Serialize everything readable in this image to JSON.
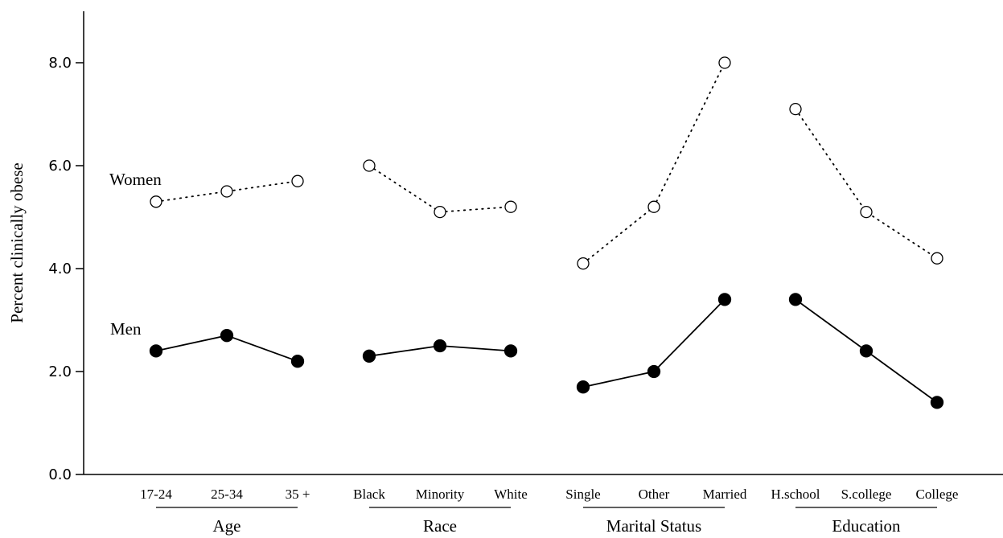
{
  "chart_data": {
    "type": "line",
    "ylabel": "Percent clinically obese",
    "ylim": [
      0,
      9
    ],
    "yticks": [
      "0.0",
      "2.0",
      "4.0",
      "6.0",
      "8.0"
    ],
    "grid": false,
    "groups": [
      {
        "label": "Age",
        "categories": [
          "17-24",
          "25-34",
          "35 +"
        ]
      },
      {
        "label": "Race",
        "categories": [
          "Black",
          "Minority",
          "White"
        ]
      },
      {
        "label": "Marital Status",
        "categories": [
          "Single",
          "Other",
          "Married"
        ]
      },
      {
        "label": "Education",
        "categories": [
          "H.school",
          "S.college",
          "College"
        ]
      }
    ],
    "series": [
      {
        "name": "Women",
        "style": "dotted-open-circle",
        "color": "#000000",
        "values": [
          [
            5.3,
            5.5,
            5.7
          ],
          [
            6.0,
            5.1,
            5.2
          ],
          [
            4.1,
            5.2,
            8.0
          ],
          [
            7.1,
            5.1,
            4.2
          ]
        ]
      },
      {
        "name": "Men",
        "style": "solid-filled-circle",
        "color": "#000000",
        "values": [
          [
            2.4,
            2.7,
            2.2
          ],
          [
            2.3,
            2.5,
            2.4
          ],
          [
            1.7,
            2.0,
            3.4
          ],
          [
            3.4,
            2.4,
            1.4
          ]
        ]
      }
    ]
  }
}
